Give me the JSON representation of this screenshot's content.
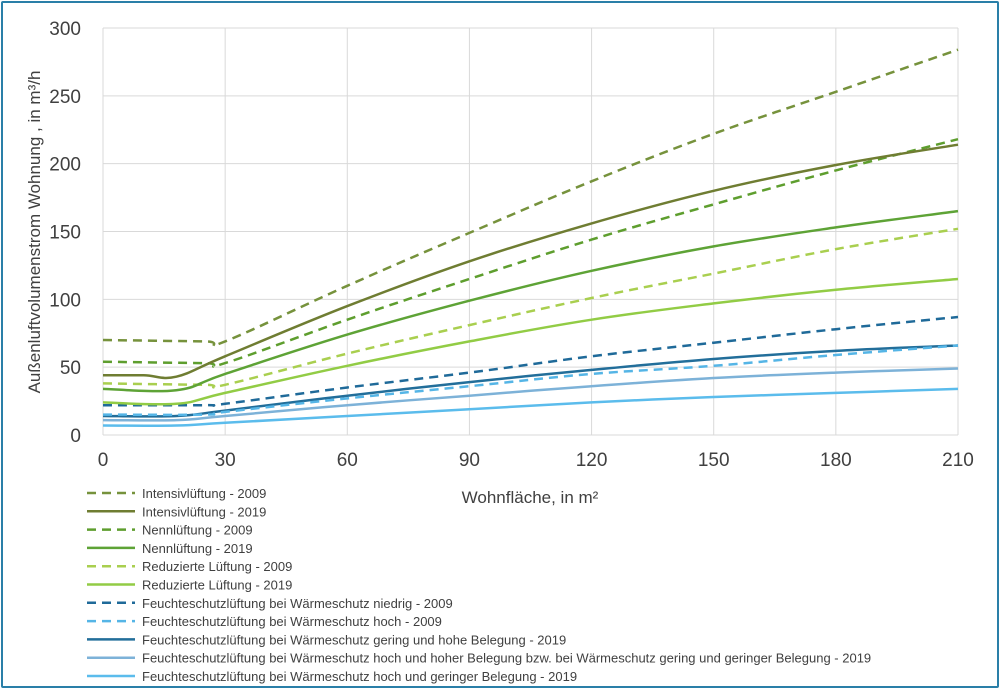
{
  "chart_data": {
    "type": "line",
    "xlabel": "Wohnfläche, in m²",
    "ylabel": "Außenluftvolumenstrom Wohnung , in m³/h",
    "xlim": [
      0,
      210
    ],
    "ylim": [
      0,
      300
    ],
    "xticks": [
      "0",
      "30",
      "60",
      "90",
      "120",
      "150",
      "180",
      "210"
    ],
    "yticks": [
      "0",
      "50",
      "100",
      "150",
      "200",
      "250",
      "300"
    ],
    "grid": true,
    "legend_position": "bottom",
    "series": [
      {
        "name": "Intensivlüftung - 2009",
        "color": "#76923c",
        "dash": true,
        "points": [
          [
            0,
            70
          ],
          [
            25,
            69
          ],
          [
            30,
            69
          ],
          [
            60,
            110
          ],
          [
            90,
            149
          ],
          [
            120,
            187
          ],
          [
            150,
            222
          ],
          [
            180,
            253
          ],
          [
            210,
            284
          ]
        ]
      },
      {
        "name": "Intensivlüftung - 2019",
        "color": "#6f7d32",
        "dash": false,
        "points": [
          [
            0,
            44
          ],
          [
            10,
            44
          ],
          [
            18,
            43
          ],
          [
            30,
            58
          ],
          [
            60,
            95
          ],
          [
            90,
            128
          ],
          [
            120,
            156
          ],
          [
            150,
            180
          ],
          [
            180,
            199
          ],
          [
            210,
            214
          ]
        ]
      },
      {
        "name": "Nennlüftung - 2009",
        "color": "#5e9e2e",
        "dash": true,
        "points": [
          [
            0,
            54
          ],
          [
            25,
            53
          ],
          [
            30,
            53
          ],
          [
            60,
            85
          ],
          [
            90,
            115
          ],
          [
            120,
            144
          ],
          [
            150,
            170
          ],
          [
            180,
            195
          ],
          [
            210,
            218
          ]
        ]
      },
      {
        "name": "Nennlüftung - 2019",
        "color": "#5ea336",
        "dash": false,
        "points": [
          [
            0,
            34
          ],
          [
            18,
            33
          ],
          [
            30,
            45
          ],
          [
            60,
            74
          ],
          [
            90,
            99
          ],
          [
            120,
            121
          ],
          [
            150,
            139
          ],
          [
            180,
            153
          ],
          [
            210,
            165
          ]
        ]
      },
      {
        "name": "Reduzierte Lüftung - 2009",
        "color": "#a9cf4f",
        "dash": true,
        "points": [
          [
            0,
            38
          ],
          [
            25,
            37
          ],
          [
            30,
            37
          ],
          [
            60,
            60
          ],
          [
            90,
            81
          ],
          [
            120,
            101
          ],
          [
            150,
            119
          ],
          [
            180,
            137
          ],
          [
            210,
            152
          ]
        ]
      },
      {
        "name": "Reduzierte Lüftung - 2019",
        "color": "#92cc45",
        "dash": false,
        "points": [
          [
            0,
            24
          ],
          [
            18,
            23
          ],
          [
            30,
            31
          ],
          [
            60,
            51
          ],
          [
            90,
            69
          ],
          [
            120,
            85
          ],
          [
            150,
            97
          ],
          [
            180,
            107
          ],
          [
            210,
            115
          ]
        ]
      },
      {
        "name": "Feuchteschutzlüftung bei Wärmeschutz niedrig - 2009",
        "color": "#1f6a99",
        "dash": true,
        "points": [
          [
            0,
            22
          ],
          [
            25,
            22
          ],
          [
            30,
            23
          ],
          [
            60,
            35
          ],
          [
            90,
            46
          ],
          [
            120,
            58
          ],
          [
            150,
            68
          ],
          [
            180,
            78
          ],
          [
            210,
            87
          ]
        ]
      },
      {
        "name": "Feuchteschutzlüftung bei Wärmeschutz hoch - 2009",
        "color": "#55b5e6",
        "dash": true,
        "points": [
          [
            0,
            15
          ],
          [
            25,
            15
          ],
          [
            30,
            17
          ],
          [
            60,
            27
          ],
          [
            90,
            36
          ],
          [
            120,
            45
          ],
          [
            150,
            51
          ],
          [
            180,
            59
          ],
          [
            210,
            66
          ]
        ]
      },
      {
        "name": "Feuchteschutzlüftung bei Wärmeschutz gering und hohe Belegung - 2019",
        "color": "#226e9a",
        "dash": false,
        "points": [
          [
            0,
            14
          ],
          [
            18,
            14
          ],
          [
            30,
            18
          ],
          [
            60,
            29
          ],
          [
            90,
            39
          ],
          [
            120,
            48
          ],
          [
            150,
            56
          ],
          [
            180,
            62
          ],
          [
            210,
            66
          ]
        ]
      },
      {
        "name": "Feuchteschutzlüftung bei Wärmeschutz hoch und hoher Belegung bzw. bei Wärmeschutz gering und geringer Belegung - 2019",
        "color": "#7db2d8",
        "dash": false,
        "points": [
          [
            0,
            11
          ],
          [
            18,
            11
          ],
          [
            30,
            14
          ],
          [
            60,
            22
          ],
          [
            90,
            29
          ],
          [
            120,
            36
          ],
          [
            150,
            42
          ],
          [
            180,
            46
          ],
          [
            210,
            49
          ]
        ]
      },
      {
        "name": "Feuchteschutzlüftung bei Wärmeschutz hoch und geringer Belegung - 2019",
        "color": "#5bbcec",
        "dash": false,
        "points": [
          [
            0,
            7
          ],
          [
            18,
            7
          ],
          [
            30,
            9
          ],
          [
            60,
            14
          ],
          [
            90,
            19
          ],
          [
            120,
            24
          ],
          [
            150,
            28
          ],
          [
            180,
            31
          ],
          [
            210,
            34
          ]
        ]
      }
    ]
  }
}
